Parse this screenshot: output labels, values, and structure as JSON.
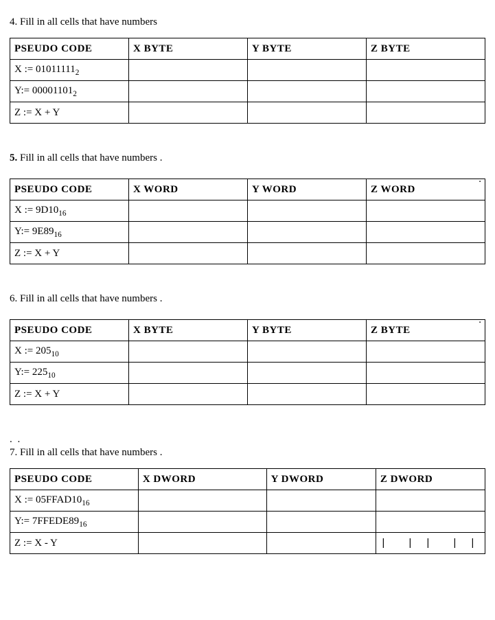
{
  "questions": [
    {
      "number": "4",
      "prompt_text": ". Fill in all cells that have numbers",
      "bold_number": false,
      "top_dot": false,
      "pre_dots": "",
      "columns": [
        "PSEUDO CODE",
        "X  BYTE",
        "Y  BYTE",
        "Z  BYTE"
      ],
      "col_widths": [
        "25%",
        "25%",
        "25%",
        "25%"
      ],
      "rows": [
        {
          "code_prefix": "X := 01011111",
          "code_sub": "2",
          "cells": [
            "",
            "",
            ""
          ]
        },
        {
          "code_prefix": "Y:= 00001101",
          "code_sub": "2",
          "cells": [
            "",
            "",
            ""
          ]
        },
        {
          "code_prefix": "Z := X + Y",
          "code_sub": "",
          "cells": [
            "",
            "",
            ""
          ]
        }
      ]
    },
    {
      "number": "5.",
      "prompt_text": "  Fill in all cells that have numbers .",
      "bold_number": true,
      "top_dot": true,
      "pre_dots": "",
      "columns": [
        "PSEUDO CODE",
        "X  WORD",
        "Y  WORD",
        "Z  WORD"
      ],
      "col_widths": [
        "25%",
        "25%",
        "25%",
        "25%"
      ],
      "rows": [
        {
          "code_prefix": "X := 9D10",
          "code_sub": "16",
          "cells": [
            "",
            "",
            ""
          ]
        },
        {
          "code_prefix": "Y:= 9E89",
          "code_sub": "16",
          "cells": [
            "",
            "",
            ""
          ]
        },
        {
          "code_prefix": "Z := X + Y",
          "code_sub": "",
          "cells": [
            "",
            "",
            ""
          ]
        }
      ]
    },
    {
      "number": "6",
      "prompt_text": ". Fill in all cells that have numbers .",
      "bold_number": false,
      "top_dot": true,
      "pre_dots": "",
      "columns": [
        "PSEUDO CODE",
        "X  BYTE",
        "Y  BYTE",
        "Z  BYTE"
      ],
      "col_widths": [
        "25%",
        "25%",
        "25%",
        "25%"
      ],
      "rows": [
        {
          "code_prefix": "X := 205",
          "code_sub": "10",
          "cells": [
            "",
            "",
            ""
          ]
        },
        {
          "code_prefix": "Y:= 225",
          "code_sub": "10",
          "cells": [
            "",
            "",
            ""
          ]
        },
        {
          "code_prefix": "Z := X + Y",
          "code_sub": "",
          "cells": [
            "",
            "",
            ""
          ]
        }
      ]
    },
    {
      "number": "7",
      "prompt_text": ". Fill in all cells that have numbers .",
      "bold_number": false,
      "top_dot": false,
      "pre_dots": ". .",
      "columns": [
        "PSEUDO CODE",
        "X  DWORD",
        "Y  DWORD",
        "Z  DWORD"
      ],
      "col_widths": [
        "27%",
        "27%",
        "23%",
        "23%"
      ],
      "rows": [
        {
          "code_prefix": "X := 05FFAD10",
          "code_sub": "16",
          "cells": [
            "",
            "",
            ""
          ]
        },
        {
          "code_prefix": "Y:= 7FFEDE89",
          "code_sub": "16",
          "cells": [
            "",
            "",
            ""
          ]
        },
        {
          "code_prefix": "Z := X - Y",
          "code_sub": "",
          "cells": [
            "",
            "",
            "|  | |  | |   |  |"
          ]
        }
      ]
    }
  ]
}
